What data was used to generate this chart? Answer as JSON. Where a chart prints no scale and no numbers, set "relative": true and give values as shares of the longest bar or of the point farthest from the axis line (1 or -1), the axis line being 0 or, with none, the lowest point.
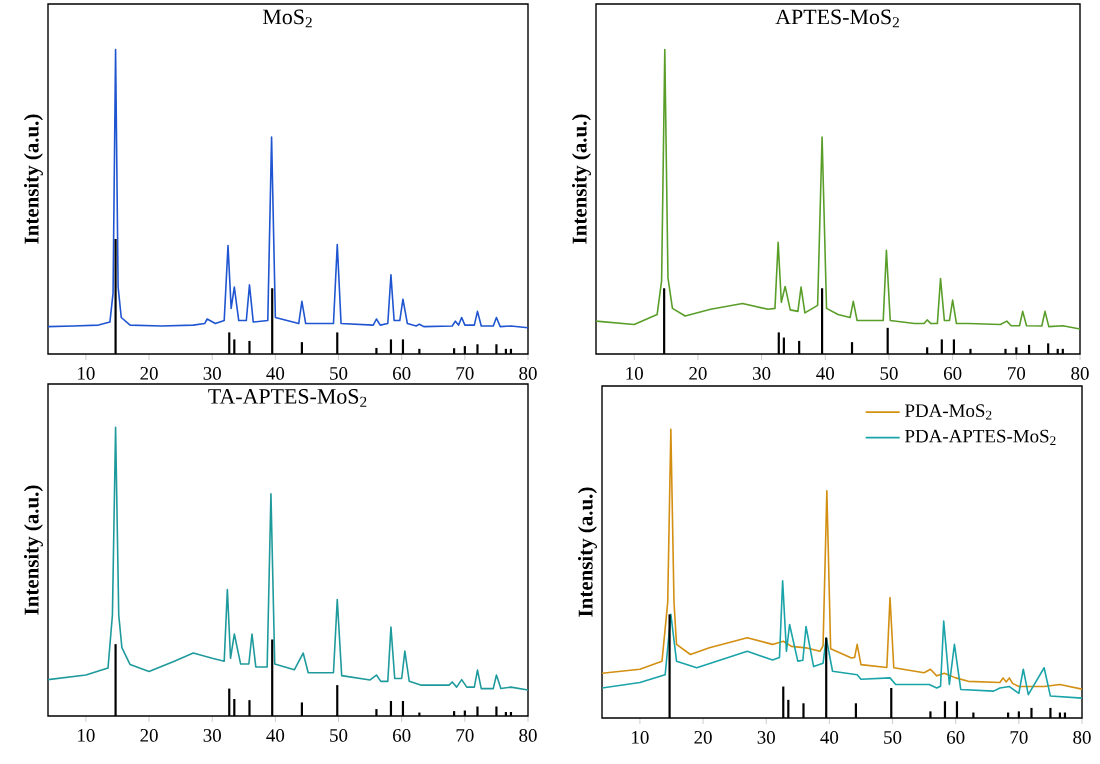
{
  "chart_data": [
    {
      "type": "line",
      "title": "MoS$_{2}$",
      "ylabel": "Intensity (a.u.)",
      "xlim": [
        4,
        80
      ],
      "xticks": [
        10,
        20,
        30,
        40,
        50,
        60,
        70,
        80
      ],
      "relative": true,
      "series": [
        {
          "color": "#1f55d0",
          "x": [
            4,
            8,
            12,
            13.8,
            14.3,
            14.7,
            15.1,
            15.6,
            17,
            22,
            27,
            28.8,
            29.2,
            30.5,
            31.9,
            32.5,
            33.0,
            33.5,
            34.2,
            35.4,
            35.9,
            36.5,
            38.8,
            39.4,
            40.0,
            43.7,
            44.2,
            44.8,
            49.2,
            49.8,
            50.4,
            55.5,
            56,
            56.6,
            57.8,
            58.3,
            58.8,
            59.7,
            60.2,
            60.9,
            62.3,
            62.8,
            63.5,
            68,
            68.5,
            69,
            69.5,
            70,
            71.5,
            72,
            72.6,
            74.5,
            75,
            75.6,
            77.3,
            80
          ],
          "values": [
            0.09,
            0.092,
            0.095,
            0.105,
            0.2,
            1,
            0.22,
            0.12,
            0.095,
            0.092,
            0.095,
            0.1,
            0.115,
            0.1,
            0.11,
            0.356,
            0.15,
            0.22,
            0.11,
            0.11,
            0.227,
            0.105,
            0.11,
            0.713,
            0.12,
            0.1,
            0.173,
            0.1,
            0.1,
            0.36,
            0.1,
            0.095,
            0.115,
            0.095,
            0.1,
            0.26,
            0.11,
            0.11,
            0.18,
            0.1,
            0.092,
            0.098,
            0.09,
            0.092,
            0.108,
            0.095,
            0.12,
            0.095,
            0.095,
            0.14,
            0.092,
            0.092,
            0.12,
            0.09,
            0.092,
            0.086
          ]
        },
        {
          "type": "bar",
          "color": "#000000",
          "x": [
            14.7,
            32.7,
            33.5,
            35.9,
            39.5,
            44.2,
            49.8,
            56,
            58.3,
            60.2,
            62.8,
            68.3,
            70,
            72,
            75,
            76.5,
            77.3
          ],
          "values": [
            0.378,
            0.071,
            0.048,
            0.043,
            0.216,
            0.039,
            0.071,
            0.02,
            0.048,
            0.048,
            0.017,
            0.019,
            0.026,
            0.032,
            0.032,
            0.017,
            0.017
          ]
        }
      ]
    },
    {
      "type": "line",
      "title": "APTES-MoS$_{2}$",
      "ylabel": "Intensity (a.u.)",
      "xlim": [
        4,
        80
      ],
      "xticks": [
        10,
        20,
        30,
        40,
        50,
        60,
        70,
        80
      ],
      "relative": true,
      "series": [
        {
          "color": "#5a9e2a",
          "x": [
            4,
            10,
            13.6,
            14.3,
            14.8,
            15.3,
            16,
            18,
            22,
            27,
            31,
            32.1,
            32.6,
            33.1,
            33.7,
            34.5,
            35.7,
            36.2,
            36.8,
            38.8,
            39.5,
            40.2,
            42,
            43.9,
            44.4,
            45,
            49.1,
            49.6,
            50.2,
            54,
            55.5,
            56,
            56.6,
            57.6,
            58.1,
            58.7,
            59.5,
            60,
            60.6,
            62.5,
            67.5,
            68.5,
            69.2,
            70.5,
            71,
            71.6,
            74,
            74.5,
            75.1,
            77.3,
            80
          ],
          "values": [
            0.108,
            0.097,
            0.13,
            0.24,
            1,
            0.25,
            0.15,
            0.125,
            0.147,
            0.166,
            0.147,
            0.15,
            0.367,
            0.17,
            0.222,
            0.145,
            0.14,
            0.22,
            0.135,
            0.16,
            0.713,
            0.15,
            0.13,
            0.12,
            0.173,
            0.11,
            0.11,
            0.341,
            0.11,
            0.1,
            0.1,
            0.112,
            0.1,
            0.1,
            0.248,
            0.11,
            0.11,
            0.177,
            0.1,
            0.1,
            0.097,
            0.108,
            0.093,
            0.093,
            0.14,
            0.093,
            0.092,
            0.14,
            0.09,
            0.093,
            0.082
          ]
        },
        {
          "type": "bar",
          "color": "#000000",
          "x": [
            14.7,
            32.7,
            33.5,
            35.9,
            39.5,
            44.2,
            49.8,
            56,
            58.3,
            60.2,
            62.8,
            68.3,
            70,
            72,
            75,
            76.5,
            77.3
          ],
          "values": [
            0.216,
            0.071,
            0.054,
            0.043,
            0.216,
            0.039,
            0.086,
            0.022,
            0.048,
            0.048,
            0.017,
            0.017,
            0.022,
            0.03,
            0.035,
            0.017,
            0.017
          ]
        }
      ]
    },
    {
      "type": "line",
      "title": "TA-APTES-MoS$_{2}$",
      "ylabel": "Intensity (a.u.)",
      "xlim": [
        4,
        80
      ],
      "xticks": [
        10,
        20,
        30,
        40,
        50,
        60,
        70,
        80
      ],
      "relative": true,
      "series": [
        {
          "color": "#1f9a9c",
          "x": [
            4,
            10,
            13.5,
            14.2,
            14.7,
            15.2,
            15.7,
            17,
            20,
            24,
            27,
            30,
            31.9,
            32.4,
            32.9,
            33.5,
            34.5,
            35.8,
            36.3,
            36.9,
            38.7,
            39.3,
            39.9,
            43,
            44.4,
            45.2,
            49.2,
            49.8,
            50.5,
            55,
            56,
            56.7,
            57.8,
            58.3,
            58.9,
            60,
            60.5,
            61.2,
            63,
            67.5,
            68,
            68.7,
            69.5,
            70.3,
            71.5,
            72,
            72.6,
            74.5,
            75,
            75.7,
            77.3,
            80
          ],
          "values": [
            0.126,
            0.142,
            0.166,
            0.35,
            1,
            0.35,
            0.237,
            0.178,
            0.154,
            0.19,
            0.218,
            0.2,
            0.19,
            0.438,
            0.2,
            0.284,
            0.18,
            0.18,
            0.284,
            0.17,
            0.17,
            0.77,
            0.18,
            0.16,
            0.218,
            0.15,
            0.15,
            0.403,
            0.14,
            0.125,
            0.142,
            0.12,
            0.12,
            0.308,
            0.13,
            0.13,
            0.225,
            0.12,
            0.107,
            0.107,
            0.118,
            0.1,
            0.126,
            0.1,
            0.1,
            0.159,
            0.095,
            0.095,
            0.142,
            0.095,
            0.1,
            0.09
          ]
        },
        {
          "type": "bar",
          "color": "#000000",
          "x": [
            14.7,
            32.7,
            33.5,
            35.9,
            39.5,
            44.2,
            49.8,
            56,
            58.3,
            60.2,
            62.8,
            68.3,
            70,
            72,
            75,
            76.5,
            77.3
          ],
          "values": [
            0.249,
            0.095,
            0.059,
            0.055,
            0.265,
            0.047,
            0.107,
            0.024,
            0.052,
            0.052,
            0.012,
            0.017,
            0.019,
            0.033,
            0.033,
            0.014,
            0.014
          ]
        }
      ]
    },
    {
      "type": "line",
      "ylabel": "Intensity (a.u.)",
      "xlim": [
        4,
        80
      ],
      "xticks": [
        10,
        20,
        30,
        40,
        50,
        60,
        70,
        80
      ],
      "relative": true,
      "legend": "top right",
      "series": [
        {
          "name": "PDA-MoS$_{2}$",
          "color": "#d38f12",
          "x": [
            4,
            10,
            13.5,
            14.4,
            14.9,
            15.4,
            15.8,
            18,
            21,
            27,
            31,
            32.7,
            34,
            36.3,
            38.5,
            39.0,
            39.6,
            40.2,
            43.5,
            44,
            44.4,
            45.0,
            49.1,
            49.6,
            50.2,
            55,
            56,
            57,
            58.2,
            60,
            62,
            67,
            67.5,
            68,
            68.5,
            69,
            70,
            74,
            76.5,
            80
          ],
          "values": [
            0.155,
            0.169,
            0.197,
            0.4,
            1,
            0.4,
            0.255,
            0.22,
            0.243,
            0.278,
            0.255,
            0.266,
            0.248,
            0.243,
            0.231,
            0.25,
            0.787,
            0.24,
            0.208,
            0.21,
            0.255,
            0.185,
            0.175,
            0.417,
            0.174,
            0.157,
            0.169,
            0.146,
            0.155,
            0.139,
            0.127,
            0.123,
            0.139,
            0.125,
            0.139,
            0.12,
            0.109,
            0.109,
            0.116,
            0.1
          ]
        },
        {
          "name": "PDA-APTES-MoS$_{2}$",
          "color": "#1aa3a8",
          "x": [
            4,
            10,
            14,
            14.9,
            15.8,
            19,
            27,
            31,
            32.1,
            32.6,
            33.2,
            33.7,
            35,
            35.8,
            36.3,
            37.5,
            39,
            39.5,
            40.5,
            44.4,
            45,
            49.6,
            50.5,
            55.8,
            57,
            57.6,
            58.1,
            59,
            59.8,
            60.8,
            66,
            67,
            68.5,
            70,
            70.7,
            71.5,
            74,
            75,
            80
          ],
          "values": [
            0.104,
            0.123,
            0.15,
            0.359,
            0.197,
            0.174,
            0.231,
            0.201,
            0.21,
            0.475,
            0.231,
            0.324,
            0.197,
            0.2,
            0.317,
            0.178,
            0.19,
            0.278,
            0.162,
            0.15,
            0.134,
            0.139,
            0.116,
            0.116,
            0.104,
            0.11,
            0.336,
            0.116,
            0.255,
            0.099,
            0.093,
            0.104,
            0.109,
            0.085,
            0.169,
            0.081,
            0.174,
            0.076,
            0.069
          ]
        },
        {
          "type": "bar",
          "color": "#000000",
          "x": [
            14.7,
            32.7,
            33.5,
            35.9,
            39.5,
            44.2,
            49.8,
            56,
            58.3,
            60.2,
            62.8,
            68.3,
            70,
            72,
            75,
            76.5,
            77.3
          ],
          "values": [
            0.359,
            0.109,
            0.063,
            0.051,
            0.278,
            0.051,
            0.104,
            0.023,
            0.058,
            0.058,
            0.019,
            0.019,
            0.023,
            0.035,
            0.035,
            0.019,
            0.019
          ]
        }
      ]
    }
  ]
}
